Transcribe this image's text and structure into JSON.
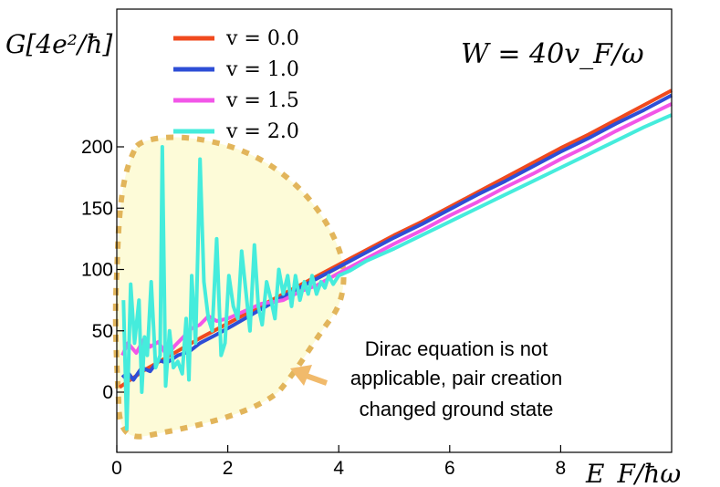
{
  "chart_data": {
    "type": "line",
    "ylabel": "G[4e²/ħ]",
    "xlabel": "E_F/ħω",
    "title_formula": "W = 40v_F/ω",
    "xlim": [
      0,
      10
    ],
    "ylim": [
      -50,
      250
    ],
    "xticks": [
      0,
      2,
      4,
      6,
      8
    ],
    "yticks": [
      0,
      50,
      100,
      150,
      200
    ],
    "grid": false,
    "legend_position": "top-left",
    "annotation": {
      "lines": [
        "Dirac equation is not",
        "applicable, pair creation",
        "changed ground state"
      ],
      "region_color": "#fdfbd8",
      "region_border_color": "#e2b55b",
      "arrow_color": "#f1ba6b"
    },
    "series": [
      {
        "name": "v = 0.0",
        "color": "#f04a1e",
        "x": [
          0.05,
          0.5,
          1.0,
          1.5,
          2.0,
          2.5,
          3.0,
          3.5,
          4.0,
          4.5,
          5.0,
          5.5,
          6.0,
          6.5,
          7.0,
          7.5,
          8.0,
          8.5,
          9.0,
          9.5,
          10.0
        ],
        "y": [
          4,
          18,
          31,
          44,
          56,
          68,
          80,
          92,
          104,
          116,
          128,
          139,
          151,
          163,
          175,
          187,
          199,
          210,
          222,
          234,
          246
        ]
      },
      {
        "name": "v = 1.0",
        "color": "#2e4ed6",
        "x": [
          0.1,
          0.2,
          0.3,
          0.45,
          0.6,
          0.75,
          0.9,
          1.1,
          1.3,
          1.5,
          1.8,
          2.0,
          2.5,
          3.0,
          3.5,
          4.0,
          4.5,
          5.0,
          5.5,
          6.0,
          6.5,
          7.0,
          7.5,
          8.0,
          8.5,
          9.0,
          9.5,
          10.0
        ],
        "y": [
          12,
          16,
          10,
          20,
          17,
          26,
          24,
          30,
          33,
          40,
          47,
          52,
          65,
          78,
          90,
          102,
          114,
          126,
          137,
          149,
          161,
          172,
          184,
          196,
          207,
          219,
          230,
          242
        ]
      },
      {
        "name": "v = 1.5",
        "color": "#f256e8",
        "x": [
          0.1,
          0.2,
          0.35,
          0.5,
          0.6,
          0.75,
          0.9,
          1.05,
          1.2,
          1.35,
          1.5,
          1.65,
          1.8,
          2.0,
          2.3,
          2.6,
          3.0,
          3.3,
          3.6,
          4.0,
          4.5,
          5.0,
          5.5,
          6.0,
          6.5,
          7.0,
          7.5,
          8.0,
          8.5,
          9.0,
          9.5,
          10.0
        ],
        "y": [
          30,
          40,
          32,
          44,
          37,
          41,
          30,
          38,
          45,
          52,
          55,
          62,
          58,
          60,
          66,
          72,
          75,
          82,
          87,
          97,
          109,
          121,
          132,
          144,
          155,
          167,
          178,
          190,
          201,
          213,
          224,
          235
        ]
      },
      {
        "name": "v = 2.0",
        "color": "#45ecdc",
        "x": [
          0.12,
          0.18,
          0.25,
          0.32,
          0.4,
          0.45,
          0.5,
          0.55,
          0.62,
          0.7,
          0.78,
          0.82,
          0.88,
          0.95,
          1.02,
          1.1,
          1.18,
          1.25,
          1.3,
          1.35,
          1.42,
          1.5,
          1.57,
          1.65,
          1.72,
          1.8,
          1.88,
          1.95,
          2.02,
          2.1,
          2.18,
          2.25,
          2.32,
          2.4,
          2.48,
          2.55,
          2.62,
          2.7,
          2.78,
          2.85,
          2.92,
          3.0,
          3.08,
          3.15,
          3.22,
          3.3,
          3.38,
          3.45,
          3.52,
          3.6,
          3.68,
          3.75,
          3.82,
          3.9,
          4.0,
          4.2,
          4.5,
          5.0,
          5.5,
          6.0,
          6.5,
          7.0,
          7.5,
          8.0,
          8.5,
          9.0,
          9.5,
          10.0
        ],
        "y": [
          75,
          -30,
          88,
          40,
          75,
          0,
          45,
          30,
          90,
          20,
          30,
          200,
          5,
          50,
          20,
          25,
          15,
          60,
          10,
          95,
          40,
          190,
          90,
          60,
          50,
          125,
          30,
          40,
          95,
          70,
          60,
          115,
          85,
          50,
          120,
          70,
          55,
          90,
          75,
          60,
          100,
          80,
          95,
          70,
          95,
          75,
          90,
          80,
          95,
          80,
          90,
          85,
          95,
          88,
          95,
          99,
          107,
          117,
          128,
          139,
          150,
          161,
          172,
          183,
          194,
          205,
          216,
          226
        ]
      }
    ]
  }
}
